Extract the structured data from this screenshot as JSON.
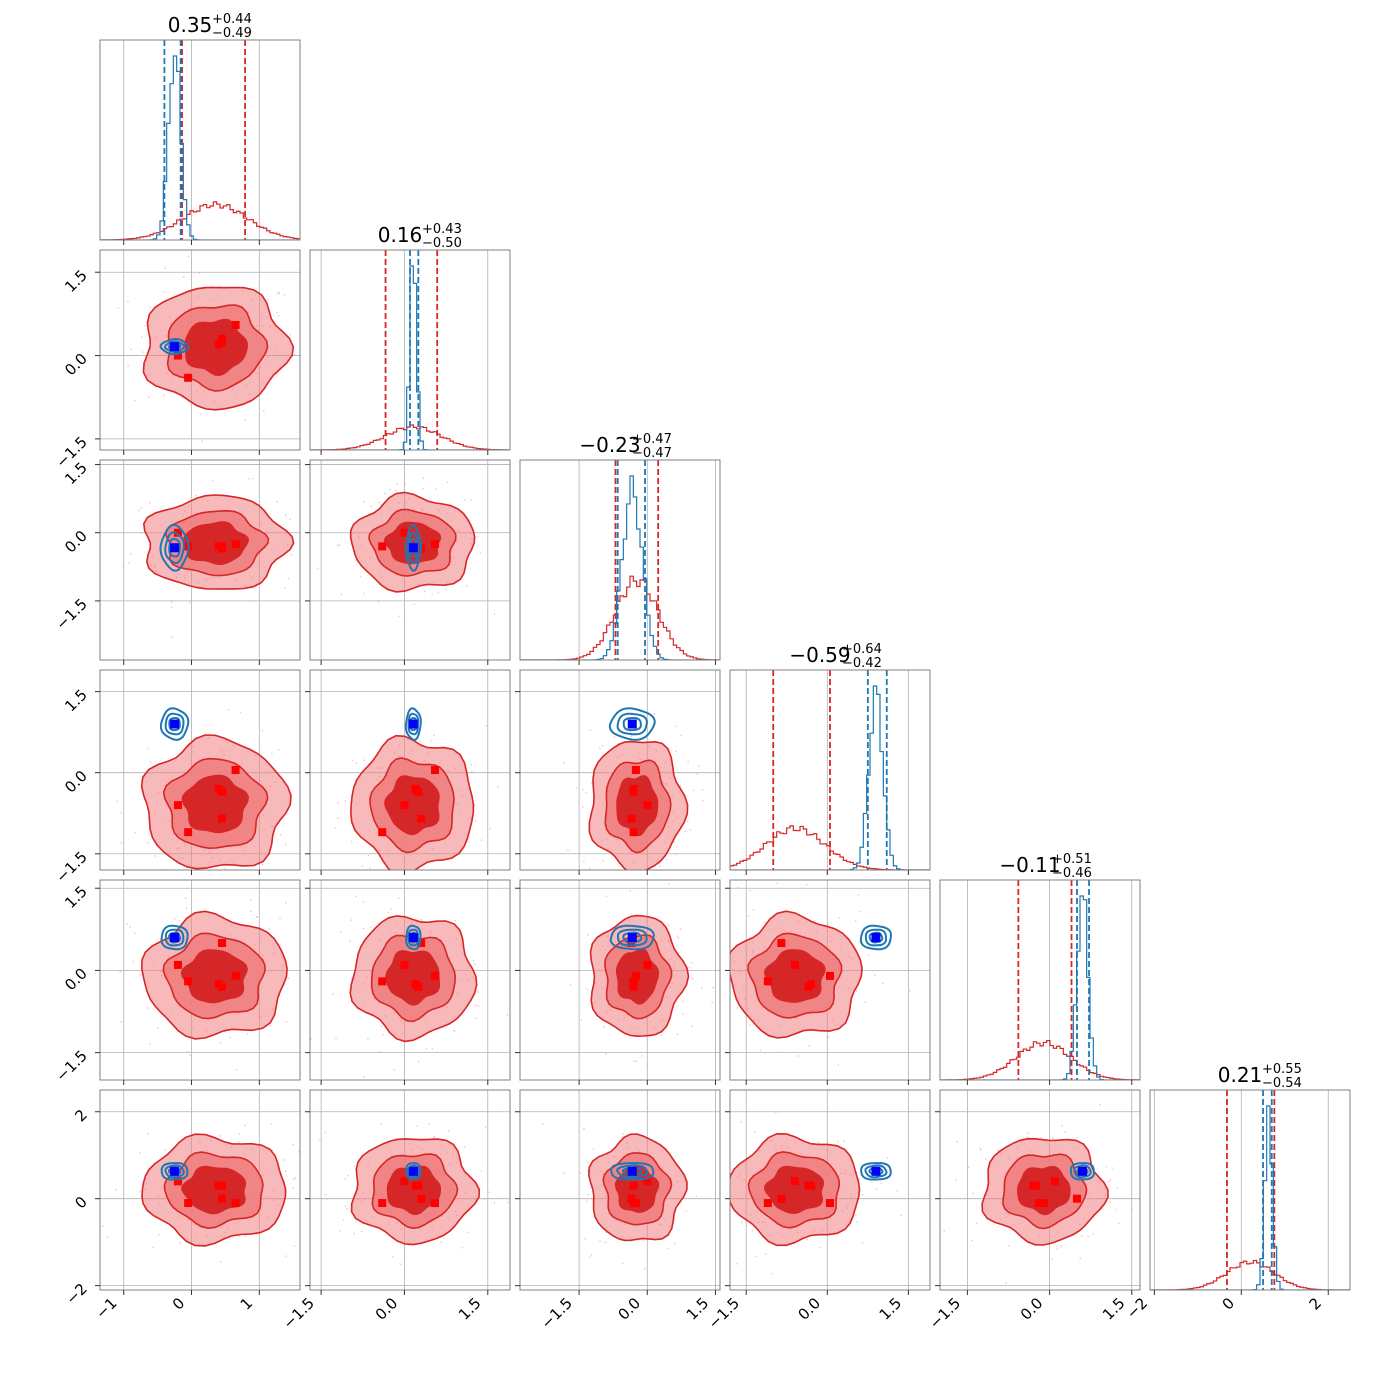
{
  "figure": {
    "type": "corner-plot",
    "colors": {
      "posterior_a": "#d62728",
      "posterior_a_light": "#f08080",
      "posterior_b": "#1f77b4",
      "marker_a": "#ff0000",
      "marker_b": "#0000ff",
      "grid": "#b0b0b0",
      "frame": "#808080"
    }
  },
  "chart_data": {
    "type": "corner",
    "n_params": 6,
    "titles": [
      {
        "median": "0.35",
        "plus": "+0.44",
        "minus": "−0.49"
      },
      {
        "median": "0.16",
        "plus": "+0.43",
        "minus": "−0.50"
      },
      {
        "median": "−0.23",
        "plus": "+0.47",
        "minus": "−0.47"
      },
      {
        "median": "−0.59",
        "plus": "+0.64",
        "minus": "−0.42"
      },
      {
        "median": "−0.11",
        "plus": "+0.51",
        "minus": "−0.46"
      },
      {
        "median": "0.21",
        "plus": "+0.55",
        "minus": "−0.54"
      }
    ],
    "ranges": [
      [
        -1.35,
        1.6
      ],
      [
        -1.7,
        1.9
      ],
      [
        -2.8,
        1.6
      ],
      [
        -1.8,
        1.9
      ],
      [
        -2.0,
        1.65
      ],
      [
        -2.1,
        2.5
      ]
    ],
    "x_ticks": [
      {
        "values": [
          -1,
          0,
          1
        ],
        "labels": [
          "−1",
          "0",
          "1"
        ]
      },
      {
        "values": [
          -1.5,
          0.0,
          1.5
        ],
        "labels": [
          "−1.5",
          "0.0",
          "1.5"
        ]
      },
      {
        "values": [
          -1.5,
          0.0,
          1.5
        ],
        "labels": [
          "−1.5",
          "0.0",
          "1.5"
        ]
      },
      {
        "values": [
          -1.5,
          0.0,
          1.5
        ],
        "labels": [
          "−1.5",
          "0.0",
          "1.5"
        ]
      },
      {
        "values": [
          -1.5,
          0.0,
          1.5
        ],
        "labels": [
          "−1.5",
          "0.0",
          "1.5"
        ]
      },
      {
        "values": [
          -2,
          0,
          2
        ],
        "labels": [
          "−2",
          "0",
          "2"
        ]
      }
    ],
    "y_ticks": [
      null,
      {
        "values": [
          -1.5,
          0.0,
          1.5
        ],
        "labels": [
          "−1.5",
          "0.0",
          "1.5"
        ]
      },
      {
        "values": [
          -1.5,
          0.0,
          1.5
        ],
        "labels": [
          "−1.5",
          "0.0",
          "1.5"
        ]
      },
      {
        "values": [
          -1.5,
          0.0,
          1.5
        ],
        "labels": [
          "−1.5",
          "0.0",
          "1.5"
        ]
      },
      {
        "values": [
          -1.5,
          0.0,
          1.5
        ],
        "labels": [
          "−1.5",
          "0.0",
          "1.5"
        ]
      },
      {
        "values": [
          -2,
          0,
          2
        ],
        "labels": [
          "−2",
          "0",
          "2"
        ]
      }
    ],
    "series": [
      {
        "color": "#d62728",
        "center": [
          0.35,
          0.16,
          -0.23,
          -0.59,
          -0.11,
          0.21
        ],
        "spread": [
          0.48,
          0.5,
          0.47,
          0.55,
          0.5,
          0.55
        ],
        "quantile_lines": [
          [
            -0.14,
            0.79
          ],
          [
            -0.34,
            0.59
          ],
          [
            -0.7,
            0.24
          ],
          [
            -1.0,
            0.05
          ],
          [
            -0.57,
            0.4
          ],
          [
            -0.33,
            0.76
          ]
        ],
        "points": [
          [
            -0.2,
            0.0,
            0.0,
            -0.6,
            0.1,
            0.4
          ],
          [
            0.45,
            0.25,
            -0.3,
            -0.35,
            -0.3,
            0.3
          ],
          [
            0.4,
            0.2,
            -0.3,
            -0.3,
            -0.25,
            0.3
          ],
          [
            0.65,
            0.55,
            -0.25,
            0.05,
            -0.1,
            -0.1
          ],
          [
            -0.05,
            -0.4,
            -0.3,
            -1.1,
            -0.2,
            -0.1
          ],
          [
            0.45,
            0.3,
            -0.35,
            -0.85,
            0.5,
            0.0
          ]
        ]
      },
      {
        "color": "#1f77b4",
        "center": [
          -0.25,
          0.16,
          -0.33,
          0.9,
          0.6,
          0.63
        ],
        "spread": [
          0.09,
          0.06,
          0.22,
          0.13,
          0.1,
          0.09
        ],
        "quantile_lines": [
          [
            -0.4,
            -0.16
          ],
          [
            0.1,
            0.25
          ],
          [
            -0.65,
            -0.05
          ],
          [
            0.75,
            1.1
          ],
          [
            0.5,
            0.72
          ],
          [
            0.5,
            0.7
          ]
        ],
        "points": [
          [
            -0.25,
            0.16,
            -0.33,
            0.9,
            0.6,
            0.63
          ]
        ]
      }
    ]
  }
}
